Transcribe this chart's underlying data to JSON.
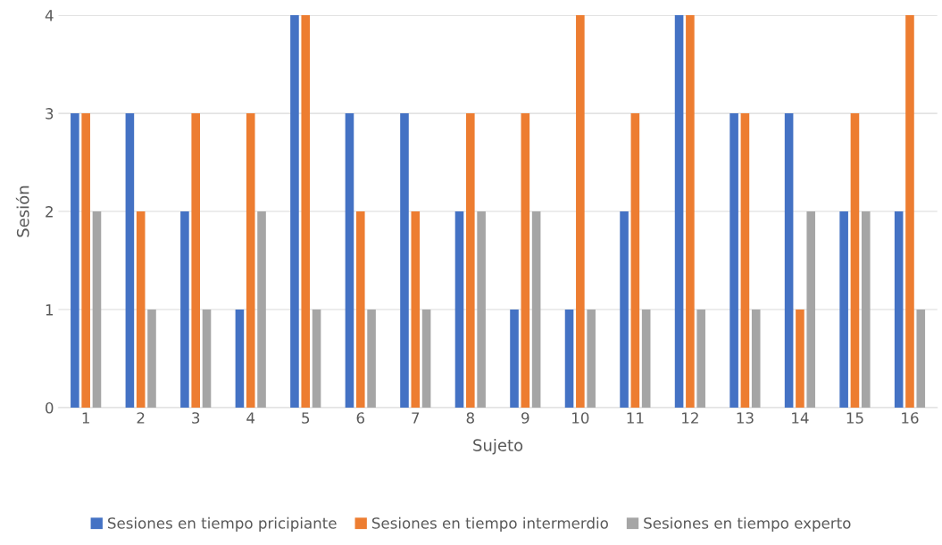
{
  "chart_data": {
    "type": "bar",
    "xlabel": "Sujeto",
    "ylabel": "Sesión",
    "categories": [
      "1",
      "2",
      "3",
      "4",
      "5",
      "6",
      "7",
      "8",
      "9",
      "10",
      "11",
      "12",
      "13",
      "14",
      "15",
      "16"
    ],
    "series": [
      {
        "name": "Sesiones en tiempo pricipiante",
        "color": "#4472c4",
        "values": [
          3,
          3,
          2,
          1,
          4,
          3,
          3,
          2,
          1,
          1,
          2,
          4,
          3,
          3,
          2,
          2
        ]
      },
      {
        "name": "Sesiones en tiempo intermerdio",
        "color": "#ed7d31",
        "values": [
          3,
          2,
          3,
          3,
          4,
          2,
          2,
          3,
          3,
          4,
          3,
          4,
          3,
          1,
          3,
          4
        ]
      },
      {
        "name": "Sesiones en tiempo experto",
        "color": "#a5a5a5",
        "values": [
          2,
          1,
          1,
          2,
          1,
          1,
          1,
          2,
          2,
          1,
          1,
          1,
          1,
          2,
          2,
          1
        ]
      }
    ],
    "ylim": [
      0,
      4
    ],
    "yticks": [
      0,
      1,
      2,
      3,
      4
    ],
    "grid": "y",
    "legend": "bottom"
  }
}
